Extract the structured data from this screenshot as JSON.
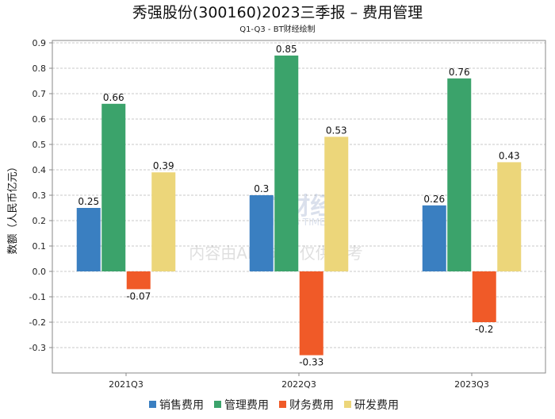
{
  "chart_data": {
    "type": "bar",
    "title": "秀强股份(300160)2023三季报 – 费用管理",
    "subtitle": "Q1-Q3 - BT财经绘制",
    "xlabel": "",
    "ylabel": "数额（人民币亿元）",
    "ylim": [
      -0.4,
      0.9
    ],
    "yticks": [
      "0.9",
      "0.8",
      "0.7",
      "0.6",
      "0.5",
      "0.4",
      "0.3",
      "0.2",
      "0.1",
      "0.0",
      "-0.1",
      "-0.2",
      "-0.3"
    ],
    "ytick_values": [
      0.9,
      0.8,
      0.7,
      0.6,
      0.5,
      0.4,
      0.3,
      0.2,
      0.1,
      0,
      -0.1,
      -0.2,
      -0.3
    ],
    "grid": true,
    "legend_position": "bottom",
    "categories": [
      "2021Q3",
      "2022Q3",
      "2023Q3"
    ],
    "series": [
      {
        "name": "销售费用",
        "color": "#3a7fc1",
        "values": [
          0.25,
          0.3,
          0.26
        ],
        "labels": [
          "0.25",
          "0.3",
          "0.26"
        ]
      },
      {
        "name": "管理费用",
        "color": "#3ba36b",
        "values": [
          0.66,
          0.85,
          0.76
        ],
        "labels": [
          "0.66",
          "0.85",
          "0.76"
        ]
      },
      {
        "name": "财务费用",
        "color": "#f05a28",
        "values": [
          -0.07,
          -0.33,
          -0.2
        ],
        "labels": [
          "-0.07",
          "-0.33",
          "-0.2"
        ]
      },
      {
        "name": "研发费用",
        "color": "#ecd67a",
        "values": [
          0.39,
          0.53,
          0.43
        ],
        "labels": [
          "0.39",
          "0.53",
          "0.43"
        ]
      }
    ]
  },
  "watermark": {
    "brand": "BT财经",
    "brand_en": "BUSINESS TIMES",
    "notice": "内容由AI生成，仅供参考"
  }
}
